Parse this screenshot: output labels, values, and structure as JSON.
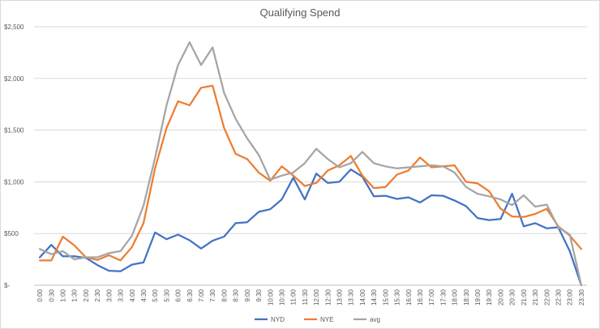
{
  "chart_data": {
    "type": "line",
    "title": "Qualifying Spend",
    "xlabel": "",
    "ylabel": "",
    "ylim": [
      0,
      2500
    ],
    "yticks": [
      {
        "value": 0,
        "label": "$-"
      },
      {
        "value": 500,
        "label": "$500"
      },
      {
        "value": 1000,
        "label": "$1,000"
      },
      {
        "value": 1500,
        "label": "$1,500"
      },
      {
        "value": 2000,
        "label": "$2,000"
      },
      {
        "value": 2500,
        "label": "$2,500"
      }
    ],
    "grid": true,
    "legend_position": "bottom",
    "categories": [
      "0:00",
      "0:30",
      "1:00",
      "1:30",
      "2:00",
      "2:30",
      "3:00",
      "3:30",
      "4:00",
      "4:30",
      "5:00",
      "5:30",
      "6:00",
      "6:30",
      "7:00",
      "7:30",
      "8:00",
      "8:30",
      "9:00",
      "9:30",
      "10:00",
      "10:30",
      "11:00",
      "11:30",
      "12:00",
      "12:30",
      "13:00",
      "13:30",
      "14:00",
      "14:30",
      "15:00",
      "15:30",
      "16:00",
      "16:30",
      "17:00",
      "17:30",
      "18:00",
      "18:30",
      "19:00",
      "19:30",
      "20:00",
      "20:30",
      "21:00",
      "21:30",
      "22:00",
      "22:30",
      "23:00",
      "23:30"
    ],
    "series": [
      {
        "name": "NYD",
        "color": "#4472c4",
        "values": [
          270,
          390,
          280,
          280,
          265,
          195,
          140,
          135,
          200,
          220,
          510,
          445,
          490,
          435,
          355,
          430,
          470,
          600,
          610,
          710,
          735,
          830,
          1040,
          830,
          1080,
          990,
          1000,
          1120,
          1050,
          860,
          865,
          835,
          850,
          800,
          870,
          865,
          820,
          765,
          650,
          630,
          640,
          885,
          570,
          600,
          550,
          560,
          330,
          0
        ]
      },
      {
        "name": "NYE",
        "color": "#ed7d31",
        "values": [
          240,
          240,
          470,
          385,
          270,
          245,
          290,
          240,
          370,
          600,
          1130,
          1520,
          1780,
          1740,
          1910,
          1930,
          1520,
          1270,
          1220,
          1090,
          1010,
          1150,
          1060,
          960,
          990,
          1110,
          1160,
          1250,
          1060,
          940,
          950,
          1070,
          1110,
          1235,
          1140,
          1150,
          1160,
          1000,
          985,
          910,
          740,
          665,
          660,
          690,
          740,
          570,
          480,
          350
        ]
      },
      {
        "name": "avg",
        "color": "#a5a5a5",
        "values": [
          350,
          300,
          330,
          250,
          270,
          270,
          310,
          330,
          480,
          770,
          1230,
          1740,
          2130,
          2350,
          2130,
          2300,
          1860,
          1610,
          1420,
          1260,
          1020,
          1060,
          1090,
          1180,
          1320,
          1220,
          1140,
          1180,
          1290,
          1180,
          1150,
          1130,
          1140,
          1150,
          1160,
          1150,
          1090,
          950,
          885,
          860,
          830,
          775,
          870,
          760,
          780,
          560,
          490,
          0
        ]
      }
    ]
  }
}
